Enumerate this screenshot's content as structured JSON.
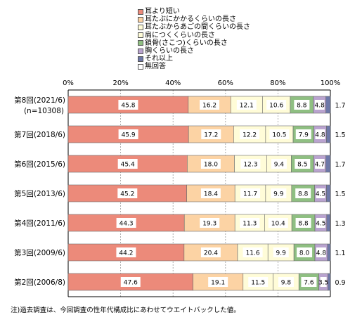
{
  "chart_data": {
    "type": "bar",
    "stacked": true,
    "orientation": "horizontal",
    "percent_stacked": true,
    "xlim": [
      0,
      100
    ],
    "x_ticks": [
      "0%",
      "20%",
      "40%",
      "60%",
      "80%",
      "100%"
    ],
    "grid": true,
    "legend_position": "top",
    "categories": [
      {
        "label": "第8回(2021/6)",
        "sublabel": "(n=10308)"
      },
      {
        "label": "第7回(2018/6)",
        "sublabel": ""
      },
      {
        "label": "第6回(2015/6)",
        "sublabel": ""
      },
      {
        "label": "第5回(2013/6)",
        "sublabel": ""
      },
      {
        "label": "第4回(2011/6)",
        "sublabel": ""
      },
      {
        "label": "第3回(2009/6)",
        "sublabel": ""
      },
      {
        "label": "第2回(2006/8)",
        "sublabel": ""
      }
    ],
    "series": [
      {
        "name": "耳より短い",
        "color": "#ec8a7a",
        "values": [
          45.8,
          45.9,
          45.4,
          45.2,
          44.3,
          44.2,
          47.6
        ]
      },
      {
        "name": "耳たぶにかかるくらいの長さ",
        "color": "#fcd3a4",
        "values": [
          16.2,
          17.2,
          18.0,
          18.4,
          19.3,
          20.4,
          19.1
        ]
      },
      {
        "name": "耳たぶからあごの間くらいの長さ",
        "color": "#fffcd8",
        "values": [
          12.1,
          12.2,
          12.3,
          11.7,
          11.3,
          11.6,
          11.5
        ]
      },
      {
        "name": "肩につくくらいの長さ",
        "color": "#fffcd8",
        "values": [
          10.6,
          10.5,
          9.4,
          9.9,
          10.4,
          9.9,
          9.8
        ]
      },
      {
        "name": "鎖骨(さこつ)くらいの長さ",
        "color": "#8fbf82",
        "values": [
          8.8,
          7.9,
          8.5,
          8.8,
          8.8,
          8.0,
          7.6
        ]
      },
      {
        "name": "胸くらいの長さ",
        "color": "#b9a3cf",
        "values": [
          4.8,
          4.8,
          4.7,
          4.5,
          4.5,
          4.8,
          3.5
        ]
      },
      {
        "name": "それ以上",
        "color": "#6e78a8",
        "values": [
          1.7,
          1.5,
          1.7,
          1.5,
          1.3,
          1.1,
          0.9
        ]
      },
      {
        "name": "無回答",
        "color": "#ffffff",
        "values": [
          0.0,
          0.0,
          0.0,
          0.0,
          0.0,
          0.0,
          0.0
        ]
      }
    ],
    "labels_outside_series": "それ以上"
  },
  "legend": {
    "items": [
      {
        "label": "耳より短い",
        "color": "#ec8a7a"
      },
      {
        "label": "耳たぶにかかるくらいの長さ",
        "color": "#fcd3a4"
      },
      {
        "label": "耳たぶからあごの間くらいの長さ",
        "color": "#fffcd8"
      },
      {
        "label": "肩につくくらいの長さ",
        "color": "#fffcd8"
      },
      {
        "label": "鎖骨(さこつ)くらいの長さ",
        "color": "#8fbf82"
      },
      {
        "label": "胸くらいの長さ",
        "color": "#b9a3cf"
      },
      {
        "label": "それ以上",
        "color": "#6e78a8"
      },
      {
        "label": "無回答",
        "color": "#ffffff"
      }
    ]
  },
  "note": "注)過去調査は、今回調査の性年代構成比にあわせてウエイトバックした値。"
}
